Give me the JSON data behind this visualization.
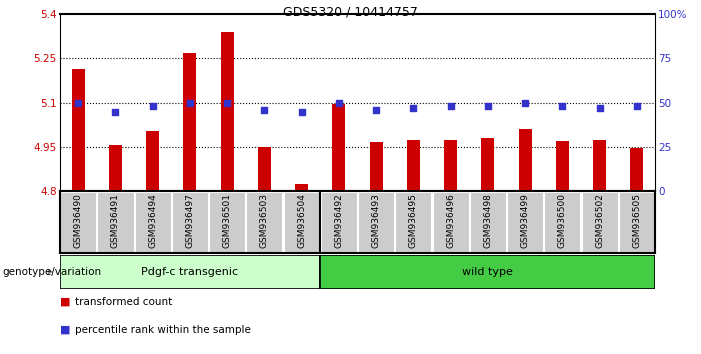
{
  "title": "GDS5320 / 10414757",
  "samples": [
    "GSM936490",
    "GSM936491",
    "GSM936494",
    "GSM936497",
    "GSM936501",
    "GSM936503",
    "GSM936504",
    "GSM936492",
    "GSM936493",
    "GSM936495",
    "GSM936496",
    "GSM936498",
    "GSM936499",
    "GSM936500",
    "GSM936502",
    "GSM936505"
  ],
  "bar_values": [
    5.215,
    4.955,
    5.005,
    5.27,
    5.34,
    4.95,
    4.825,
    5.095,
    4.965,
    4.975,
    4.975,
    4.98,
    5.01,
    4.97,
    4.975,
    4.945
  ],
  "dot_values": [
    50,
    45,
    48,
    50,
    50,
    46,
    45,
    50,
    46,
    47,
    48,
    48,
    50,
    48,
    47,
    48
  ],
  "ylim_left": [
    4.8,
    5.4
  ],
  "ylim_right": [
    0,
    100
  ],
  "yticks_left": [
    4.8,
    4.95,
    5.1,
    5.25,
    5.4
  ],
  "yticks_right": [
    0,
    25,
    50,
    75,
    100
  ],
  "ytick_labels_left": [
    "4.8",
    "4.95",
    "5.1",
    "5.25",
    "5.4"
  ],
  "ytick_labels_right": [
    "0",
    "25",
    "50",
    "75",
    "100%"
  ],
  "hlines": [
    4.95,
    5.1,
    5.25
  ],
  "bar_color": "#cc0000",
  "dot_color": "#3333cc",
  "bar_bottom": 4.8,
  "group1_label": "Pdgf-c transgenic",
  "group2_label": "wild type",
  "group1_count": 7,
  "group2_count": 9,
  "group1_color": "#ccffcc",
  "group2_color": "#44cc44",
  "legend_bar_label": "transformed count",
  "legend_dot_label": "percentile rank within the sample",
  "xlabel_left": "genotype/variation",
  "tick_label_color": "#cc0000",
  "right_tick_color": "#3333cc",
  "background_color": "#ffffff",
  "plot_bg_color": "#ffffff",
  "label_box_color": "#cccccc",
  "title_fontsize": 9,
  "axis_fontsize": 7.5,
  "label_fontsize": 6.5,
  "group_fontsize": 8
}
